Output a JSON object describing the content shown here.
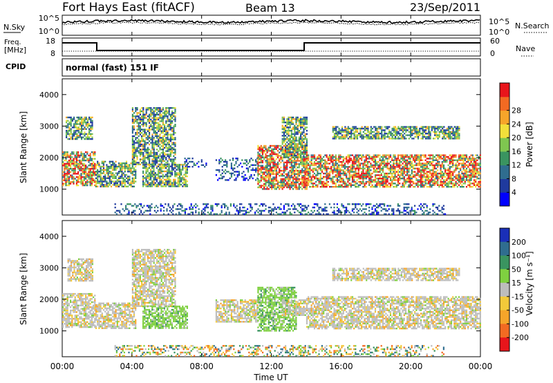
{
  "header": {
    "station": "Fort Hays East (fitACF)",
    "beam": "Beam 13",
    "date": "23/Sep/2011"
  },
  "noise_panel": {
    "left_label": "N.Sky",
    "right_label": "N.Search",
    "tick_top": "10^5",
    "tick_bottom": "10^0"
  },
  "freq_panel": {
    "left_label_line1": "Freq.",
    "left_label_line2": "[MHz]",
    "left_tick_top": "18",
    "left_tick_bottom": "8",
    "right_label": "Nave",
    "right_tick_top": "60",
    "right_tick_bottom": "0"
  },
  "cpid_panel": {
    "label": "CPID",
    "value": "normal (fast) 151 IF"
  },
  "x_axis": {
    "label": "Time UT",
    "ticks": [
      "00:00",
      "04:00",
      "08:00",
      "12:00",
      "16:00",
      "20:00",
      "00:00"
    ]
  },
  "chart_data": [
    {
      "type": "heatmap",
      "panel": "power",
      "xlabel": "Time UT",
      "ylabel": "Slant Range [km]",
      "xlim": [
        0,
        24
      ],
      "ylim": [
        180,
        4500
      ],
      "y_ticks": [
        "1000",
        "2000",
        "3000",
        "4000"
      ],
      "colorbar": {
        "label": "Power [dB]",
        "ticks": [
          "4",
          "8",
          "12",
          "16",
          "20",
          "24",
          "28"
        ],
        "colors": [
          "#0000ff",
          "#1f3a9e",
          "#2f6d8f",
          "#3a9460",
          "#7fc650",
          "#f2df3a",
          "#f6a52a",
          "#f26a22",
          "#e8151b"
        ]
      },
      "bands": [
        {
          "t0": 0.0,
          "t1": 1.9,
          "r0": 1100,
          "r1": 2200,
          "level": "high"
        },
        {
          "t0": 0.2,
          "t1": 1.7,
          "r0": 2600,
          "r1": 3300,
          "level": "mid"
        },
        {
          "t0": 1.9,
          "t1": 4.2,
          "r0": 1100,
          "r1": 1900,
          "level": "mid"
        },
        {
          "t0": 4.0,
          "t1": 6.5,
          "r0": 1800,
          "r1": 3600,
          "level": "mid"
        },
        {
          "t0": 4.6,
          "t1": 7.2,
          "r0": 1100,
          "r1": 1800,
          "level": "mid"
        },
        {
          "t0": 7.0,
          "t1": 8.3,
          "r0": 1700,
          "r1": 2000,
          "level": "low"
        },
        {
          "t0": 8.8,
          "t1": 11.2,
          "r0": 1300,
          "r1": 2000,
          "level": "low"
        },
        {
          "t0": 11.2,
          "t1": 14.0,
          "r0": 1000,
          "r1": 2400,
          "level": "high"
        },
        {
          "t0": 12.6,
          "t1": 14.0,
          "r0": 2000,
          "r1": 3300,
          "level": "mid"
        },
        {
          "t0": 14.0,
          "t1": 24.0,
          "r0": 1100,
          "r1": 2100,
          "level": "high"
        },
        {
          "t0": 15.5,
          "t1": 22.8,
          "r0": 2600,
          "r1": 3000,
          "level": "mid"
        },
        {
          "t0": 3.0,
          "t1": 22.0,
          "r0": 200,
          "r1": 550,
          "level": "low"
        }
      ]
    },
    {
      "type": "heatmap",
      "panel": "velocity",
      "xlabel": "Time UT",
      "ylabel": "Slant Range [km]",
      "xlim": [
        0,
        24
      ],
      "ylim": [
        180,
        4500
      ],
      "y_ticks": [
        "1000",
        "2000",
        "3000",
        "4000"
      ],
      "colorbar": {
        "label": "Velocity [m s⁻¹]",
        "ticks": [
          "200",
          "100",
          "50",
          "15",
          "-15",
          "-50",
          "-100",
          "-200"
        ],
        "colors": [
          "#1a2fb8",
          "#2f6d8f",
          "#3a9460",
          "#7fd040",
          "#bdbdbd",
          "#f2c93a",
          "#f6a52a",
          "#f26a22",
          "#e8151b"
        ]
      },
      "bands": [
        {
          "t0": 0.0,
          "t1": 1.9,
          "r0": 1100,
          "r1": 2200,
          "level": "gray"
        },
        {
          "t0": 0.3,
          "t1": 1.7,
          "r0": 2600,
          "r1": 3300,
          "level": "gray"
        },
        {
          "t0": 1.9,
          "t1": 4.2,
          "r0": 1100,
          "r1": 1900,
          "level": "gray"
        },
        {
          "t0": 4.0,
          "t1": 6.5,
          "r0": 1800,
          "r1": 3600,
          "level": "gray"
        },
        {
          "t0": 4.6,
          "t1": 7.2,
          "r0": 1100,
          "r1": 1800,
          "level": "green"
        },
        {
          "t0": 8.8,
          "t1": 11.2,
          "r0": 1300,
          "r1": 2000,
          "level": "gray"
        },
        {
          "t0": 11.2,
          "t1": 13.4,
          "r0": 1000,
          "r1": 2400,
          "level": "green"
        },
        {
          "t0": 12.6,
          "t1": 14.0,
          "r0": 1500,
          "r1": 2000,
          "level": "gray"
        },
        {
          "t0": 14.0,
          "t1": 24.0,
          "r0": 1100,
          "r1": 2100,
          "level": "gray"
        },
        {
          "t0": 15.5,
          "t1": 22.8,
          "r0": 2600,
          "r1": 3000,
          "level": "gray"
        },
        {
          "t0": 3.0,
          "t1": 22.0,
          "r0": 200,
          "r1": 550,
          "level": "mixed"
        }
      ]
    }
  ]
}
